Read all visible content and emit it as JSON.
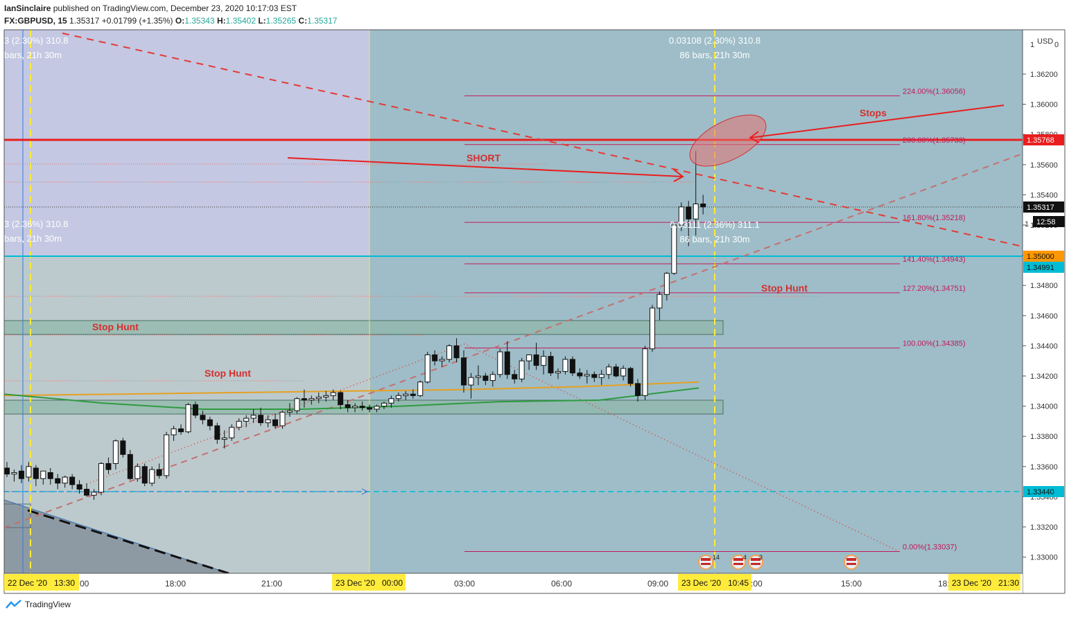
{
  "header": {
    "publisher": "IanSinclaire",
    "published_text": "published on TradingView.com, December 23, 2020 10:17:03 EST",
    "symbol": "FX:GBPUSD, 15",
    "last": "1.35317",
    "change": "+0.01799 (+1.35%)",
    "open_label": "O:",
    "open": "1.35343",
    "high_label": "H:",
    "high": "1.35402",
    "low_label": "L:",
    "low": "1.35265",
    "close_label": "C:",
    "close": "1.35317"
  },
  "footer": {
    "brand": "TradingView"
  },
  "axis": {
    "currency": "USD",
    "top_partial": "1",
    "top_right": "0",
    "price_ticks": [
      "1.36200",
      "1.36000",
      "1.35800",
      "1.35600",
      "1.35400",
      "1.35200",
      "1.35000",
      "1.34800",
      "1.34600",
      "1.34400",
      "1.34200",
      "1.34000",
      "1.33800",
      "1.33600",
      "1.33400",
      "1.33200",
      "1.33000"
    ],
    "time_ticks": [
      "18:00",
      "21:00",
      "03:00",
      "06:00",
      "09:00",
      "15:00"
    ],
    "time_partial_left": "00",
    "time_partial_right": "18:",
    "time_partial_mid": ":00",
    "date_badges": [
      {
        "text": "22 Dec '20   13:30"
      },
      {
        "text": "23 Dec '20   00:00"
      },
      {
        "text": "23 Dec '20   10:45"
      },
      {
        "text": "23 Dec '20   21:30"
      }
    ],
    "price_badges": [
      {
        "text": "1.35768",
        "color": "#e91e1e",
        "fg": "#ffffff"
      },
      {
        "text": "1.35317",
        "color": "#111111",
        "fg": "#ffffff"
      },
      {
        "text": "12:58",
        "color": "#111111",
        "fg": "#ffffff"
      },
      {
        "text": "1.35000",
        "color": "#ff9800",
        "fg": "#111111"
      },
      {
        "text": "1.34991",
        "color": "#00bcd4",
        "fg": "#111111"
      },
      {
        "text": "1.33440",
        "color": "#00bcd4",
        "fg": "#111111"
      }
    ],
    "behind_badge_digit": "1"
  },
  "measure": {
    "top_main": "0.03108 (2.30%) 310.8",
    "top_sub": "86 bars, 21h 30m",
    "left_top_main": "3 (2.30%) 310.8",
    "left_top_sub": "bars, 21h 30m",
    "mid_main": "0.03111 (2.36%) 311.1",
    "mid_sub": "86 bars, 21h 30m",
    "left_mid_main": "3 (2.36%) 310.8",
    "left_mid_sub": "bars, 21h 30m"
  },
  "fib_levels": [
    {
      "label": "224.00%(1.36056)",
      "price": 1.36056
    },
    {
      "label": "200.00%(1.35733)",
      "price": 1.35733
    },
    {
      "label": "161.80%(1.35218)",
      "price": 1.35218
    },
    {
      "label": "141.40%(1.34943)",
      "price": 1.34943
    },
    {
      "label": "127.20%(1.34751)",
      "price": 1.34751
    },
    {
      "label": "100.00%(1.34385)",
      "price": 1.34385
    },
    {
      "label": "0.00%(1.33037)",
      "price": 1.33037
    }
  ],
  "annotations": {
    "short": "SHORT",
    "stops": "Stops",
    "stop_hunt_right": "Stop Hunt",
    "stop_hunt_upper": "Stop Hunt",
    "stop_hunt_lower": "Stop Hunt"
  },
  "event_flags": [
    {
      "count": "14"
    },
    {
      "count": "4"
    },
    {
      "count": "3"
    },
    {
      "count": ""
    }
  ],
  "colors": {
    "up": "#ffffff",
    "down": "#111111",
    "resistance": "#e91e1e",
    "cyan": "#00bcd4",
    "fib": "#c2185b",
    "ma_orange": "#e6a020",
    "ma_green": "#2e9a40",
    "zone_left": "#c4c8e2",
    "zone_right": "#9ebdc8"
  },
  "chart_data": {
    "type": "candlestick",
    "symbol": "GBPUSD",
    "timeframe": "15",
    "ylim": [
      1.329,
      1.364
    ],
    "price_unit": "USD",
    "horizontal_levels": [
      1.35768,
      1.35,
      1.34991,
      1.3344
    ],
    "candles": [
      {
        "o": 1.3359,
        "h": 1.3363,
        "l": 1.3353,
        "c": 1.3355
      },
      {
        "o": 1.3355,
        "h": 1.3358,
        "l": 1.335,
        "c": 1.3356
      },
      {
        "o": 1.3357,
        "h": 1.3361,
        "l": 1.3349,
        "c": 1.3352
      },
      {
        "o": 1.3353,
        "h": 1.3363,
        "l": 1.335,
        "c": 1.336
      },
      {
        "o": 1.3359,
        "h": 1.3361,
        "l": 1.3347,
        "c": 1.3352
      },
      {
        "o": 1.3352,
        "h": 1.3357,
        "l": 1.3348,
        "c": 1.3357
      },
      {
        "o": 1.3356,
        "h": 1.3359,
        "l": 1.3348,
        "c": 1.3352
      },
      {
        "o": 1.3352,
        "h": 1.3355,
        "l": 1.3345,
        "c": 1.3349
      },
      {
        "o": 1.3349,
        "h": 1.3354,
        "l": 1.3346,
        "c": 1.3353
      },
      {
        "o": 1.3353,
        "h": 1.3355,
        "l": 1.3345,
        "c": 1.3348
      },
      {
        "o": 1.3348,
        "h": 1.3351,
        "l": 1.3342,
        "c": 1.3345
      },
      {
        "o": 1.3345,
        "h": 1.3349,
        "l": 1.334,
        "c": 1.3341
      },
      {
        "o": 1.3341,
        "h": 1.3345,
        "l": 1.3338,
        "c": 1.3343
      },
      {
        "o": 1.3343,
        "h": 1.3363,
        "l": 1.3341,
        "c": 1.3362
      },
      {
        "o": 1.3362,
        "h": 1.3366,
        "l": 1.3355,
        "c": 1.3358
      },
      {
        "o": 1.3362,
        "h": 1.3378,
        "l": 1.3358,
        "c": 1.3377
      },
      {
        "o": 1.3377,
        "h": 1.3379,
        "l": 1.3366,
        "c": 1.3368
      },
      {
        "o": 1.3368,
        "h": 1.3371,
        "l": 1.3351,
        "c": 1.3352
      },
      {
        "o": 1.3352,
        "h": 1.3362,
        "l": 1.335,
        "c": 1.336
      },
      {
        "o": 1.336,
        "h": 1.3362,
        "l": 1.3347,
        "c": 1.3349
      },
      {
        "o": 1.3349,
        "h": 1.336,
        "l": 1.3347,
        "c": 1.3358
      },
      {
        "o": 1.3358,
        "h": 1.3362,
        "l": 1.3352,
        "c": 1.3354
      },
      {
        "o": 1.3354,
        "h": 1.3383,
        "l": 1.3352,
        "c": 1.3381
      },
      {
        "o": 1.3381,
        "h": 1.3387,
        "l": 1.3377,
        "c": 1.3385
      },
      {
        "o": 1.3385,
        "h": 1.3388,
        "l": 1.3381,
        "c": 1.3383
      },
      {
        "o": 1.3383,
        "h": 1.3402,
        "l": 1.3382,
        "c": 1.3401
      },
      {
        "o": 1.3401,
        "h": 1.3403,
        "l": 1.3392,
        "c": 1.3394
      },
      {
        "o": 1.3394,
        "h": 1.3397,
        "l": 1.3388,
        "c": 1.3391
      },
      {
        "o": 1.3391,
        "h": 1.3393,
        "l": 1.3384,
        "c": 1.3387
      },
      {
        "o": 1.3387,
        "h": 1.3389,
        "l": 1.3375,
        "c": 1.3378
      },
      {
        "o": 1.3378,
        "h": 1.3384,
        "l": 1.3372,
        "c": 1.3379
      },
      {
        "o": 1.3379,
        "h": 1.3388,
        "l": 1.3377,
        "c": 1.3386
      },
      {
        "o": 1.3386,
        "h": 1.3392,
        "l": 1.3384,
        "c": 1.339
      },
      {
        "o": 1.339,
        "h": 1.3394,
        "l": 1.3386,
        "c": 1.3392
      },
      {
        "o": 1.3392,
        "h": 1.3398,
        "l": 1.3389,
        "c": 1.3394
      },
      {
        "o": 1.3394,
        "h": 1.3399,
        "l": 1.3387,
        "c": 1.3389
      },
      {
        "o": 1.3389,
        "h": 1.3394,
        "l": 1.3386,
        "c": 1.3391
      },
      {
        "o": 1.3391,
        "h": 1.3395,
        "l": 1.3385,
        "c": 1.3387
      },
      {
        "o": 1.3387,
        "h": 1.3397,
        "l": 1.3385,
        "c": 1.3396
      },
      {
        "o": 1.3396,
        "h": 1.3402,
        "l": 1.3393,
        "c": 1.3397
      },
      {
        "o": 1.3397,
        "h": 1.3406,
        "l": 1.3395,
        "c": 1.3405
      },
      {
        "o": 1.3405,
        "h": 1.3411,
        "l": 1.3399,
        "c": 1.3404
      },
      {
        "o": 1.3404,
        "h": 1.3407,
        "l": 1.3401,
        "c": 1.3405
      },
      {
        "o": 1.3405,
        "h": 1.3409,
        "l": 1.3402,
        "c": 1.3406
      },
      {
        "o": 1.3406,
        "h": 1.341,
        "l": 1.3403,
        "c": 1.3407
      },
      {
        "o": 1.3407,
        "h": 1.3411,
        "l": 1.3404,
        "c": 1.3409
      },
      {
        "o": 1.3409,
        "h": 1.341,
        "l": 1.3398,
        "c": 1.3401
      },
      {
        "o": 1.3401,
        "h": 1.3404,
        "l": 1.3396,
        "c": 1.3399
      },
      {
        "o": 1.3399,
        "h": 1.3402,
        "l": 1.3396,
        "c": 1.34
      },
      {
        "o": 1.34,
        "h": 1.3403,
        "l": 1.3397,
        "c": 1.3399
      },
      {
        "o": 1.3399,
        "h": 1.3401,
        "l": 1.3396,
        "c": 1.3398
      },
      {
        "o": 1.3398,
        "h": 1.3401,
        "l": 1.3396,
        "c": 1.34
      },
      {
        "o": 1.34,
        "h": 1.3403,
        "l": 1.3398,
        "c": 1.3402
      },
      {
        "o": 1.3402,
        "h": 1.3407,
        "l": 1.3399,
        "c": 1.3405
      },
      {
        "o": 1.3405,
        "h": 1.3409,
        "l": 1.3403,
        "c": 1.3407
      },
      {
        "o": 1.3407,
        "h": 1.341,
        "l": 1.3404,
        "c": 1.3408
      },
      {
        "o": 1.3408,
        "h": 1.3411,
        "l": 1.3405,
        "c": 1.3407
      },
      {
        "o": 1.3407,
        "h": 1.3417,
        "l": 1.3406,
        "c": 1.3416
      },
      {
        "o": 1.3416,
        "h": 1.3436,
        "l": 1.3415,
        "c": 1.3434
      },
      {
        "o": 1.3434,
        "h": 1.3437,
        "l": 1.3427,
        "c": 1.343
      },
      {
        "o": 1.343,
        "h": 1.3433,
        "l": 1.3426,
        "c": 1.3431
      },
      {
        "o": 1.3431,
        "h": 1.3441,
        "l": 1.3429,
        "c": 1.344
      },
      {
        "o": 1.344,
        "h": 1.3445,
        "l": 1.3429,
        "c": 1.3432
      },
      {
        "o": 1.3432,
        "h": 1.3437,
        "l": 1.3409,
        "c": 1.3414
      },
      {
        "o": 1.3414,
        "h": 1.3422,
        "l": 1.3405,
        "c": 1.3419
      },
      {
        "o": 1.3419,
        "h": 1.3427,
        "l": 1.3414,
        "c": 1.342
      },
      {
        "o": 1.342,
        "h": 1.3422,
        "l": 1.3414,
        "c": 1.3417
      },
      {
        "o": 1.3417,
        "h": 1.3423,
        "l": 1.3413,
        "c": 1.3421
      },
      {
        "o": 1.3421,
        "h": 1.3438,
        "l": 1.3419,
        "c": 1.3436
      },
      {
        "o": 1.3436,
        "h": 1.3443,
        "l": 1.3418,
        "c": 1.3421
      },
      {
        "o": 1.3421,
        "h": 1.3424,
        "l": 1.3415,
        "c": 1.3418
      },
      {
        "o": 1.3418,
        "h": 1.3432,
        "l": 1.3416,
        "c": 1.343
      },
      {
        "o": 1.343,
        "h": 1.3433,
        "l": 1.3424,
        "c": 1.3434
      },
      {
        "o": 1.3434,
        "h": 1.3442,
        "l": 1.3424,
        "c": 1.3427
      },
      {
        "o": 1.3427,
        "h": 1.3437,
        "l": 1.3421,
        "c": 1.3433
      },
      {
        "o": 1.3433,
        "h": 1.3436,
        "l": 1.342,
        "c": 1.3422
      },
      {
        "o": 1.3422,
        "h": 1.3425,
        "l": 1.3418,
        "c": 1.3423
      },
      {
        "o": 1.3423,
        "h": 1.3433,
        "l": 1.3421,
        "c": 1.3431
      },
      {
        "o": 1.3431,
        "h": 1.3433,
        "l": 1.342,
        "c": 1.3422
      },
      {
        "o": 1.3422,
        "h": 1.3425,
        "l": 1.3418,
        "c": 1.342
      },
      {
        "o": 1.342,
        "h": 1.3424,
        "l": 1.3415,
        "c": 1.3421
      },
      {
        "o": 1.3421,
        "h": 1.3423,
        "l": 1.3416,
        "c": 1.3419
      },
      {
        "o": 1.3419,
        "h": 1.3424,
        "l": 1.3414,
        "c": 1.3421
      },
      {
        "o": 1.3421,
        "h": 1.3428,
        "l": 1.3418,
        "c": 1.3426
      },
      {
        "o": 1.3426,
        "h": 1.3428,
        "l": 1.3419,
        "c": 1.342
      },
      {
        "o": 1.342,
        "h": 1.3427,
        "l": 1.3417,
        "c": 1.3425
      },
      {
        "o": 1.3425,
        "h": 1.3426,
        "l": 1.3413,
        "c": 1.3415
      },
      {
        "o": 1.3415,
        "h": 1.3418,
        "l": 1.3403,
        "c": 1.3407
      },
      {
        "o": 1.3407,
        "h": 1.344,
        "l": 1.3404,
        "c": 1.3438
      },
      {
        "o": 1.3438,
        "h": 1.3467,
        "l": 1.3436,
        "c": 1.3465
      },
      {
        "o": 1.3465,
        "h": 1.3476,
        "l": 1.3457,
        "c": 1.3474
      },
      {
        "o": 1.3474,
        "h": 1.3489,
        "l": 1.347,
        "c": 1.3488
      },
      {
        "o": 1.3488,
        "h": 1.3522,
        "l": 1.3487,
        "c": 1.352
      },
      {
        "o": 1.352,
        "h": 1.3535,
        "l": 1.3516,
        "c": 1.3532
      },
      {
        "o": 1.3532,
        "h": 1.3536,
        "l": 1.3506,
        "c": 1.3524
      },
      {
        "o": 1.3524,
        "h": 1.3569,
        "l": 1.3513,
        "c": 1.3534
      },
      {
        "o": 1.3534,
        "h": 1.354,
        "l": 1.3527,
        "c": 1.3532
      }
    ],
    "ma_orange": [
      1.3407,
      1.3408,
      1.3409,
      1.341,
      1.3411,
      1.3413,
      1.3416
    ],
    "ma_green": [
      1.3408,
      1.3402,
      1.3398,
      1.3398,
      1.34,
      1.3403,
      1.3404,
      1.3412
    ]
  }
}
